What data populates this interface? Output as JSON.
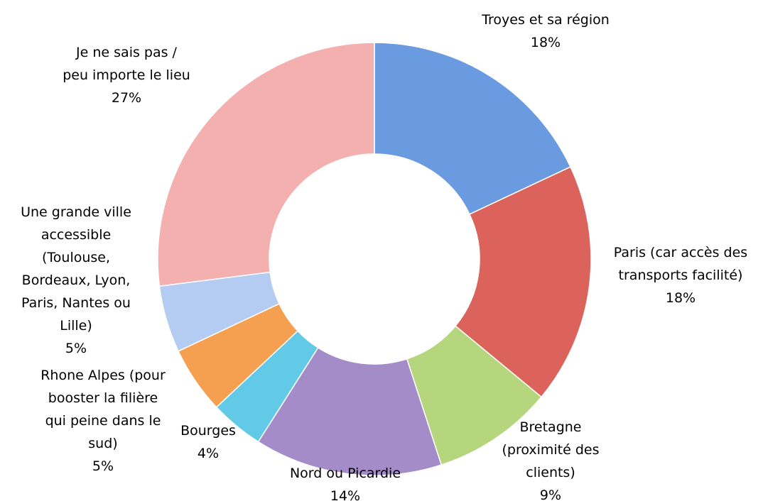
{
  "chart_data": {
    "type": "donut",
    "categories": [
      "Troyes et sa région",
      "Paris (car accès des\ntransports facilité)",
      "Bretagne\n(proximité des\nclients)",
      "Nord ou Picardie",
      "Bourges",
      "Rhone Alpes (pour\nbooster la filière\nqui peine dans le\nsud)",
      "Une grande ville\naccessible\n(Toulouse,\nBordeaux, Lyon,\nParis, Nantes ou\nLille)",
      "Je ne sais pas /\npeu importe le lieu"
    ],
    "values": [
      18,
      18,
      9,
      14,
      4,
      5,
      5,
      27
    ],
    "value_labels": [
      "18%",
      "18%",
      "9%",
      "14%",
      "4%",
      "5%",
      "5%",
      "27%"
    ],
    "colors": [
      "#6a9ae0",
      "#dc625c",
      "#b5d67c",
      "#a48cc8",
      "#62c9e6",
      "#f5a050",
      "#b4cbf2",
      "#f4b0ae"
    ]
  }
}
